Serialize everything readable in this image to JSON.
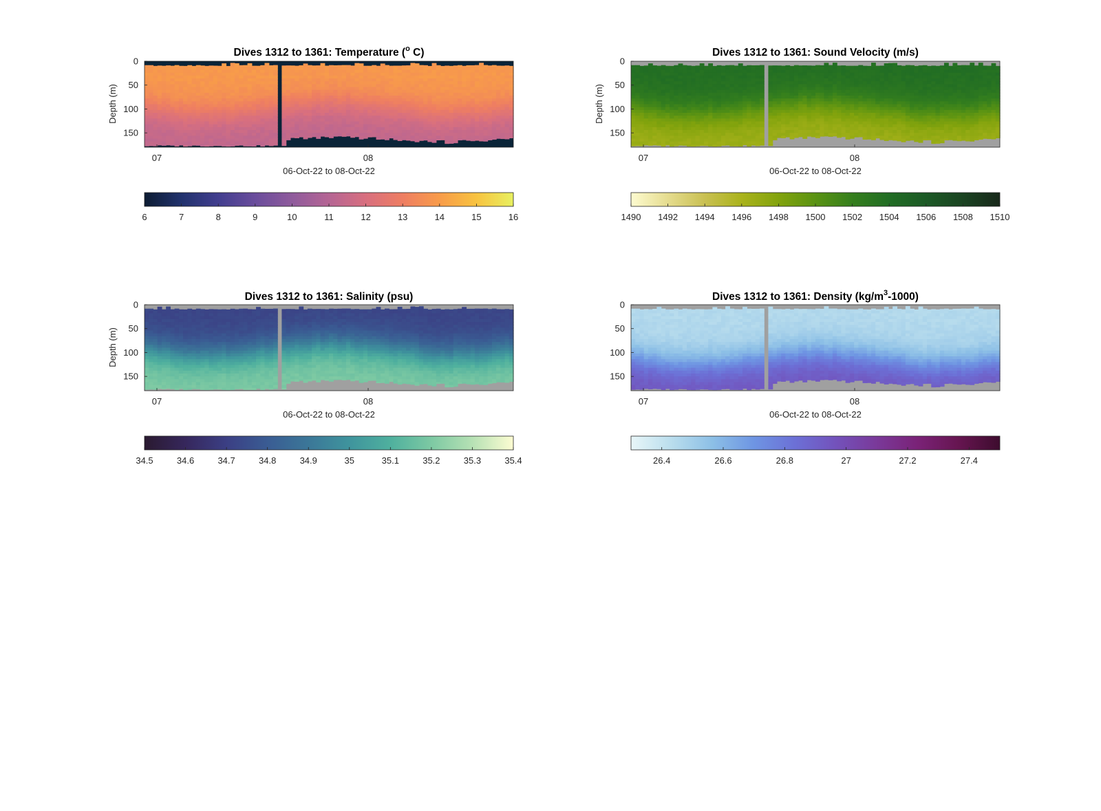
{
  "chart_data": [
    {
      "type": "heatmap",
      "title_main": "Dives 1312 to 1361: Temperature (",
      "title_sup": "o",
      "title_end": " C)",
      "xlabel": "06-Oct-22 to 08-Oct-22",
      "ylabel": "Depth (m)",
      "x_tick_labels": [
        "07",
        "08"
      ],
      "y_tick_labels": [
        "0",
        "50",
        "100",
        "150"
      ],
      "ylim": [
        0,
        180
      ],
      "colorbar": {
        "range": [
          6,
          16
        ],
        "tick_labels": [
          "6",
          "7",
          "8",
          "9",
          "10",
          "11",
          "12",
          "13",
          "14",
          "15",
          "16"
        ],
        "colors": [
          "#0d1c33",
          "#21326d",
          "#423e8f",
          "#6a4d9c",
          "#8f5b9c",
          "#b56594",
          "#d86f7f",
          "#ee7e62",
          "#f89c4a",
          "#f8c340",
          "#e8f060"
        ]
      },
      "void_color": "#0a2438",
      "profile": {
        "surface_value": 13.9,
        "deep_value": 11.3,
        "thermocline_depth": 95
      }
    },
    {
      "type": "heatmap",
      "title_main": "Dives 1312 to 1361: Sound Velocity (m/s)",
      "title_sup": "",
      "title_end": "",
      "xlabel": "06-Oct-22 to 08-Oct-22",
      "ylabel": "Depth (m)",
      "x_tick_labels": [
        "07",
        "08"
      ],
      "y_tick_labels": [
        "0",
        "50",
        "100",
        "150"
      ],
      "ylim": [
        0,
        180
      ],
      "colorbar": {
        "range": [
          1490,
          1510
        ],
        "tick_labels": [
          "1490",
          "1492",
          "1494",
          "1496",
          "1498",
          "1500",
          "1502",
          "1504",
          "1506",
          "1508",
          "1510"
        ],
        "colors": [
          "#fdfbd0",
          "#e5dc8f",
          "#c9c052",
          "#aab31c",
          "#82a30d",
          "#5a9313",
          "#357f1d",
          "#216d24",
          "#1c5a26",
          "#1b4422",
          "#18281a"
        ]
      },
      "void_color": "#a0a0a0",
      "profile": {
        "surface_value": 1503.8,
        "deep_value": 1496.6,
        "thermocline_depth": 95
      }
    },
    {
      "type": "heatmap",
      "title_main": "Dives 1312 to 1361: Salinity (psu)",
      "title_sup": "",
      "title_end": "",
      "xlabel": "06-Oct-22 to 08-Oct-22",
      "ylabel": "Depth (m)",
      "x_tick_labels": [
        "07",
        "08"
      ],
      "y_tick_labels": [
        "0",
        "50",
        "100",
        "150"
      ],
      "ylim": [
        0,
        180
      ],
      "colorbar": {
        "range": [
          34.5,
          35.4
        ],
        "tick_labels": [
          "34.5",
          "34.6",
          "34.7",
          "34.8",
          "34.9",
          "35",
          "35.1",
          "35.2",
          "35.3",
          "35.4"
        ],
        "colors": [
          "#2a1a30",
          "#36275c",
          "#3b3f84",
          "#3a5c93",
          "#3b7798",
          "#3f949d",
          "#4fb09e",
          "#7dc9a3",
          "#b6e1b4",
          "#fdfdd2"
        ]
      },
      "void_color": "#a0a0a0",
      "profile": {
        "surface_value": 34.72,
        "deep_value": 35.2,
        "thermocline_depth": 90
      }
    },
    {
      "type": "heatmap",
      "title_main": "Dives 1312 to 1361: Density (kg/m",
      "title_sup": "3",
      "title_end": "-1000)",
      "xlabel": "06-Oct-22 to 08-Oct-22",
      "ylabel": "",
      "x_tick_labels": [
        "07",
        "08"
      ],
      "y_tick_labels": [
        "0",
        "50",
        "100",
        "150"
      ],
      "ylim": [
        0,
        180
      ],
      "colorbar": {
        "range": [
          26.3,
          27.5
        ],
        "tick_labels": [
          "26.4",
          "26.6",
          "26.8",
          "27",
          "27.2",
          "27.4"
        ],
        "tick_values": [
          26.4,
          26.6,
          26.8,
          27.0,
          27.2,
          27.4
        ],
        "colors": [
          "#e8f6f8",
          "#b9dded",
          "#8cbfe6",
          "#6e95e3",
          "#6c70d6",
          "#7352bb",
          "#7a3999",
          "#7a2277",
          "#661550",
          "#3d0c2e"
        ]
      },
      "void_color": "#a0a0a0",
      "profile": {
        "surface_value": 26.45,
        "deep_value": 26.95,
        "thermocline_depth": 110
      }
    }
  ]
}
